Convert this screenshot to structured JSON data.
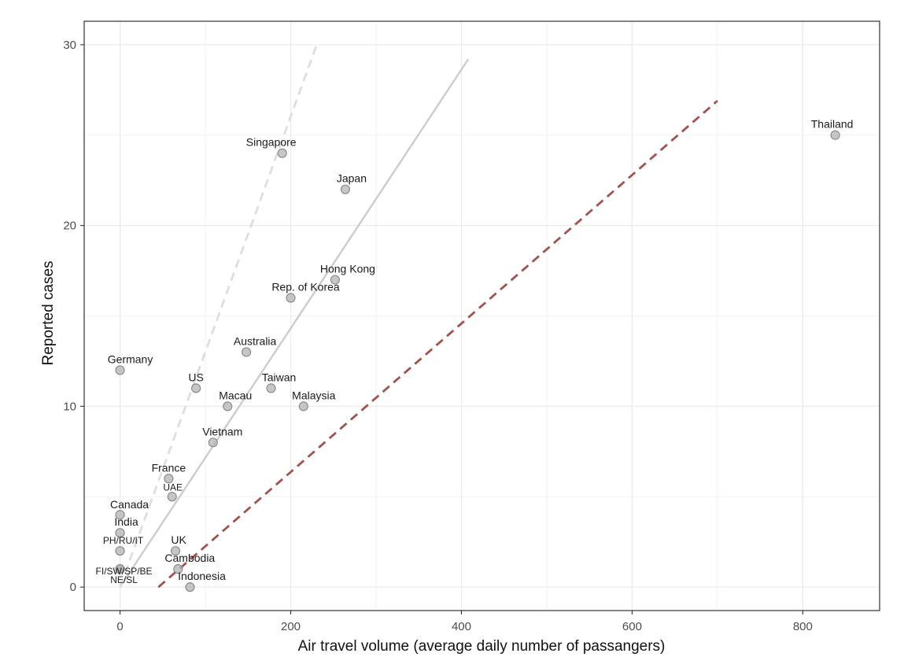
{
  "chart_data": {
    "type": "scatter",
    "title": "",
    "xlabel": "Air travel volume (average daily number of passangers)",
    "ylabel": "Reported cases",
    "xlim": [
      -42,
      890
    ],
    "ylim": [
      -1.3,
      31.3
    ],
    "x_ticks": [
      0,
      200,
      400,
      600,
      800
    ],
    "y_ticks": [
      0,
      10,
      20,
      30
    ],
    "x_tick_labels": [
      "0",
      "200",
      "400",
      "600",
      "800"
    ],
    "y_tick_labels": [
      "0",
      "10",
      "20",
      "30"
    ],
    "grid": true,
    "theme": "bw",
    "point_color": "#b3b3b3",
    "point_stroke": "#8c8c8c",
    "points": [
      {
        "label": "Thailand",
        "x": 838,
        "y": 25
      },
      {
        "label": "Singapore",
        "x": 190,
        "y": 24
      },
      {
        "label": "Japan",
        "x": 264,
        "y": 22
      },
      {
        "label": "Hong Kong",
        "x": 252,
        "y": 17
      },
      {
        "label": "Rep. of Korea",
        "x": 200,
        "y": 16
      },
      {
        "label": "Australia",
        "x": 148,
        "y": 13
      },
      {
        "label": "Germany",
        "x": 0,
        "y": 12
      },
      {
        "label": "US",
        "x": 89,
        "y": 11
      },
      {
        "label": "Taiwan",
        "x": 177,
        "y": 11
      },
      {
        "label": "Macau",
        "x": 126,
        "y": 10
      },
      {
        "label": "Malaysia",
        "x": 215,
        "y": 10
      },
      {
        "label": "Vietnam",
        "x": 109,
        "y": 8
      },
      {
        "label": "France",
        "x": 57,
        "y": 6
      },
      {
        "label": "UAE",
        "x": 61,
        "y": 5
      },
      {
        "label": "Canada",
        "x": 0,
        "y": 4
      },
      {
        "label": "India",
        "x": 0,
        "y": 3
      },
      {
        "label": "PH/RU/IT",
        "x": 0,
        "y": 2
      },
      {
        "label": "UK",
        "x": 65,
        "y": 2
      },
      {
        "label": "Cambodia",
        "x": 68,
        "y": 1
      },
      {
        "label": "NE/SL",
        "x": 0,
        "y": 1
      },
      {
        "label": "FI/SW/SP/BE",
        "x": 0,
        "y": 1
      },
      {
        "label": "Indonesia",
        "x": 82,
        "y": 0
      }
    ],
    "lines": [
      {
        "style": "solid",
        "color": "#cccccc",
        "x": [
          0,
          408
        ],
        "y": [
          0,
          29.2
        ]
      },
      {
        "style": "dashed",
        "color": "#dedede",
        "x": [
          0,
          232
        ],
        "y": [
          0,
          30.2
        ]
      },
      {
        "style": "dashed",
        "color": "#a0524f",
        "x": [
          45,
          700
        ],
        "y": [
          0,
          26.9
        ]
      }
    ]
  }
}
